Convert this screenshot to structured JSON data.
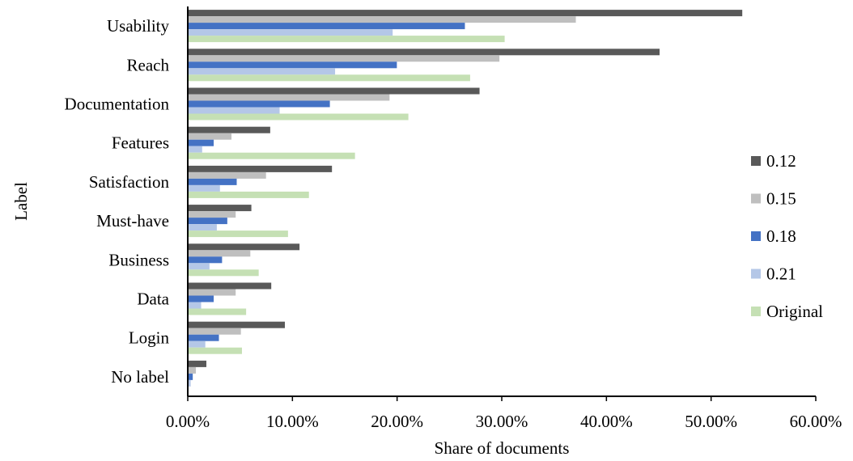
{
  "chart_data": {
    "type": "bar",
    "orientation": "horizontal",
    "categories": [
      "Usability",
      "Reach",
      "Documentation",
      "Features",
      "Satisfaction",
      "Must-have",
      "Business",
      "Data",
      "Login",
      "No label"
    ],
    "series": [
      {
        "name": "0.12",
        "color": "#595959",
        "values": [
          0.529,
          0.45,
          0.278,
          0.078,
          0.137,
          0.06,
          0.106,
          0.079,
          0.092,
          0.017
        ]
      },
      {
        "name": "0.15",
        "color": "#bfbfbf",
        "values": [
          0.37,
          0.297,
          0.192,
          0.041,
          0.074,
          0.045,
          0.059,
          0.045,
          0.05,
          0.007
        ]
      },
      {
        "name": "0.18",
        "color": "#4472c4",
        "values": [
          0.264,
          0.199,
          0.135,
          0.024,
          0.046,
          0.037,
          0.032,
          0.024,
          0.029,
          0.004
        ]
      },
      {
        "name": "0.21",
        "color": "#b4c7e7",
        "values": [
          0.195,
          0.14,
          0.087,
          0.013,
          0.03,
          0.027,
          0.02,
          0.012,
          0.016,
          0.002
        ]
      },
      {
        "name": "Original",
        "color": "#c5e0b4",
        "values": [
          0.302,
          0.269,
          0.21,
          0.159,
          0.115,
          0.095,
          0.067,
          0.055,
          0.051,
          0.0
        ]
      }
    ],
    "xlim": [
      0,
      0.6
    ],
    "xticks": [
      "0.00%",
      "10.00%",
      "20.00%",
      "30.00%",
      "40.00%",
      "50.00%",
      "60.00%"
    ],
    "xlabel": "Share of documents",
    "ylabel": "Label",
    "grid": false,
    "legend": "right"
  }
}
